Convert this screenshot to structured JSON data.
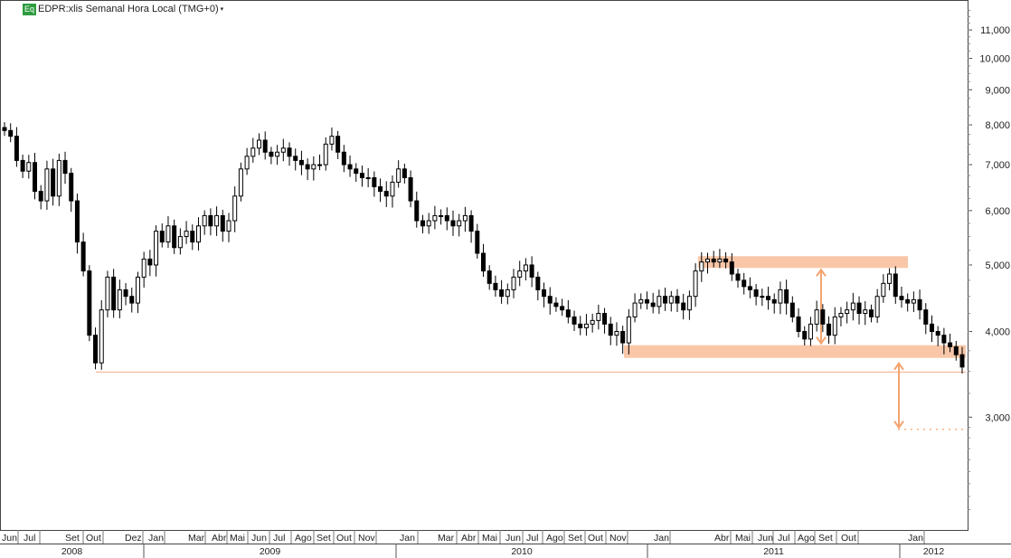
{
  "header": {
    "badge": "Eq",
    "title": "EDPR:xlis Semanal Hora Local (TMG+0)",
    "caret": "▾"
  },
  "colors": {
    "band_fill": "#f9c7a8",
    "arrow": "#f4a46f",
    "support_line": "#f4b391",
    "candle": "#000000"
  },
  "chart_data": {
    "type": "candlestick",
    "title": "EDPR:xlis Semanal Hora Local (TMG+0)",
    "y_scale": "log",
    "ylim": [
      2.08,
      11.8
    ],
    "y_ticks": [
      {
        "value": 3.0,
        "label": "3,000"
      },
      {
        "value": 4.0,
        "label": "4,000"
      },
      {
        "value": 5.0,
        "label": "5,000"
      },
      {
        "value": 6.0,
        "label": "6,000"
      },
      {
        "value": 7.0,
        "label": "7,000"
      },
      {
        "value": 8.0,
        "label": "8,000"
      },
      {
        "value": 9.0,
        "label": "9,000"
      },
      {
        "value": 10.0,
        "label": "10,000"
      },
      {
        "value": 11.0,
        "label": "11,000"
      }
    ],
    "x_months": [
      "Jun",
      "Jul",
      "Set",
      "Out",
      "Dez",
      "Jan",
      "Mar",
      "Abr",
      "Mai",
      "Jun",
      "Jul",
      "Ago",
      "Set",
      "Out",
      "Nov",
      "Jan",
      "Mar",
      "Abr",
      "Mai",
      "Jun",
      "Jul",
      "Ago",
      "Set",
      "Out",
      "Nov",
      "Jan",
      "Abr",
      "Mai",
      "Jun",
      "Jul",
      "Ago",
      "Set",
      "Out",
      "Jan"
    ],
    "x_years": [
      "2008",
      "2009",
      "2010",
      "2011",
      "2012"
    ],
    "closes": [
      7.85,
      7.7,
      7.1,
      6.85,
      7.05,
      6.4,
      6.2,
      6.9,
      6.3,
      7.1,
      6.8,
      6.2,
      5.4,
      4.9,
      3.95,
      3.6,
      4.3,
      4.8,
      4.3,
      4.6,
      4.5,
      4.4,
      4.8,
      5.1,
      5.0,
      5.6,
      5.4,
      5.7,
      5.3,
      5.5,
      5.6,
      5.4,
      5.7,
      5.9,
      5.7,
      5.9,
      5.6,
      5.8,
      6.3,
      6.9,
      7.2,
      7.4,
      7.6,
      7.3,
      7.2,
      7.3,
      7.4,
      7.2,
      7.1,
      7.0,
      6.9,
      7.0,
      7.0,
      7.5,
      7.7,
      7.3,
      7.0,
      6.9,
      6.8,
      6.7,
      6.7,
      6.5,
      6.4,
      6.3,
      6.6,
      6.9,
      6.7,
      6.2,
      5.8,
      5.7,
      5.8,
      5.9,
      5.9,
      5.8,
      5.7,
      5.8,
      5.9,
      5.6,
      5.2,
      4.9,
      4.7,
      4.6,
      4.5,
      4.6,
      4.8,
      4.9,
      5.0,
      4.8,
      4.6,
      4.5,
      4.4,
      4.35,
      4.3,
      4.2,
      4.1,
      4.05,
      4.1,
      4.15,
      4.25,
      4.1,
      3.95,
      4.0,
      3.85,
      4.2,
      4.4,
      4.45,
      4.4,
      4.35,
      4.5,
      4.4,
      4.5,
      4.4,
      4.3,
      4.5,
      4.9,
      5.05,
      5.1,
      5.05,
      5.1,
      5.05,
      4.85,
      4.75,
      4.65,
      4.6,
      4.5,
      4.5,
      4.45,
      4.4,
      4.6,
      4.4,
      4.2,
      4.0,
      3.9,
      4.1,
      4.3,
      4.1,
      3.95,
      4.2,
      4.25,
      4.3,
      4.4,
      4.25,
      4.3,
      4.2,
      4.5,
      4.7,
      4.85,
      4.5,
      4.45,
      4.4,
      4.45,
      4.3,
      4.1,
      4.0,
      3.95,
      3.85,
      3.8,
      3.7,
      3.55
    ]
  },
  "annotations": {
    "resistance_band": [
      4.95,
      5.15
    ],
    "support_band": [
      3.66,
      3.82
    ],
    "support_line": 3.49,
    "target_level": 2.88
  }
}
